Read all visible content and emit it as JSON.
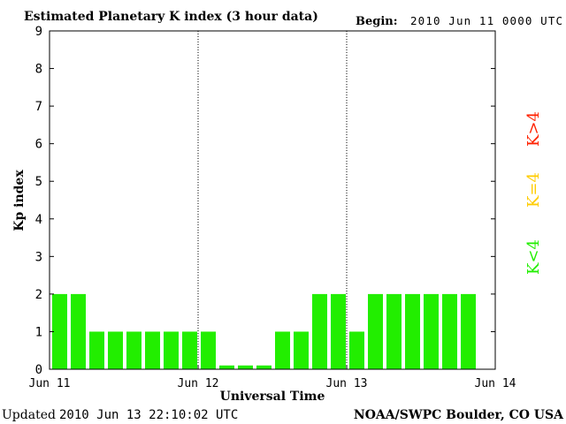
{
  "header": {
    "title": "Estimated Planetary K index (3 hour data)",
    "begin_label": "Begin:",
    "begin_value": "2010 Jun 11 0000 UTC"
  },
  "footer": {
    "updated_label": "Updated",
    "updated_value": "2010 Jun 13 22:10:02 UTC",
    "source": "NOAA/SWPC Boulder, CO USA"
  },
  "legend": {
    "items": [
      {
        "label": "K>4",
        "color": "#ff2200"
      },
      {
        "label": "K=4",
        "color": "#ffcc00"
      },
      {
        "label": "K<4",
        "color": "#22ee00"
      }
    ]
  },
  "chart_data": {
    "type": "bar",
    "title": "Estimated Planetary K index (3 hour data)",
    "xlabel": "Universal Time",
    "ylabel": "Kp index",
    "ylim": [
      0,
      9
    ],
    "yticks": [
      "0",
      "1",
      "2",
      "3",
      "4",
      "5",
      "6",
      "7",
      "8",
      "9"
    ],
    "xticks": [
      "Jun 11",
      "Jun 12",
      "Jun 13",
      "Jun 14"
    ],
    "day_separators": [
      "Jun 12",
      "Jun 13"
    ],
    "interval_hours": 3,
    "bar_color": "#22ee00",
    "values": [
      2,
      2,
      1,
      1,
      1,
      1,
      1,
      1,
      1,
      0.1,
      0.1,
      0.1,
      1,
      1,
      2,
      2,
      1,
      2,
      2,
      2,
      2,
      2,
      2
    ]
  }
}
